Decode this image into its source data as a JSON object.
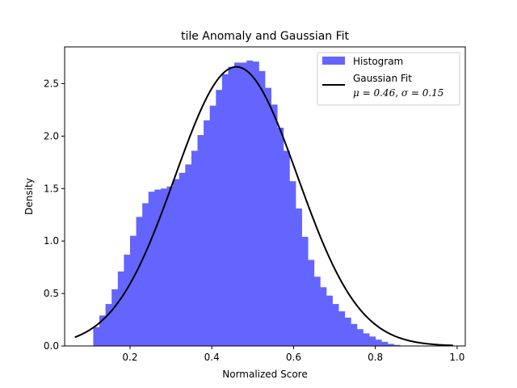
{
  "chart_data": {
    "type": "bar",
    "title": "tile Anomaly and Gaussian Fit",
    "xlabel": "Normalized Score",
    "ylabel": "Density",
    "xlim": [
      0.04,
      1.02
    ],
    "ylim": [
      0,
      2.85
    ],
    "xticks": [
      0.2,
      0.4,
      0.6,
      0.8,
      1.0
    ],
    "xtick_labels": [
      "0.2",
      "0.4",
      "0.6",
      "0.8",
      "1.0"
    ],
    "yticks": [
      0.0,
      0.5,
      1.0,
      1.5,
      2.0,
      2.5
    ],
    "ytick_labels": [
      "0.0",
      "0.5",
      "1.0",
      "1.5",
      "2.0",
      "2.5"
    ],
    "grid": false,
    "legend_position": "top-right",
    "colors": {
      "histogram": "#6464ff",
      "fit": "#000000"
    },
    "series": [
      {
        "name": "Histogram",
        "kind": "histogram",
        "bin_edges": [
          0.11,
          0.125,
          0.14,
          0.155,
          0.17,
          0.185,
          0.2,
          0.215,
          0.23,
          0.245,
          0.26,
          0.275,
          0.29,
          0.305,
          0.32,
          0.335,
          0.35,
          0.365,
          0.38,
          0.395,
          0.41,
          0.425,
          0.44,
          0.455,
          0.47,
          0.485,
          0.5,
          0.515,
          0.53,
          0.545,
          0.56,
          0.575,
          0.59,
          0.605,
          0.62,
          0.635,
          0.65,
          0.665,
          0.68,
          0.695,
          0.71,
          0.725,
          0.74,
          0.755,
          0.77,
          0.785,
          0.8,
          0.815,
          0.83,
          0.845,
          0.86
        ],
        "values": [
          0.18,
          0.29,
          0.4,
          0.54,
          0.71,
          0.87,
          1.05,
          1.23,
          1.36,
          1.47,
          1.49,
          1.5,
          1.52,
          1.59,
          1.65,
          1.73,
          1.86,
          2.01,
          2.15,
          2.29,
          2.44,
          2.59,
          2.66,
          2.7,
          2.7,
          2.72,
          2.71,
          2.62,
          2.46,
          2.3,
          2.08,
          1.86,
          1.57,
          1.31,
          1.04,
          0.82,
          0.66,
          0.56,
          0.48,
          0.4,
          0.33,
          0.27,
          0.21,
          0.16,
          0.12,
          0.09,
          0.06,
          0.04,
          0.02,
          0.01
        ]
      },
      {
        "name": "Gaussian Fit",
        "kind": "line",
        "mu": 0.46,
        "sigma": 0.15,
        "x_range": [
          0.065,
          0.99
        ]
      }
    ],
    "legend": {
      "histogram_label": "Histogram",
      "fit_label": "Gaussian Fit",
      "fit_params": "μ = 0.46,  σ = 0.15"
    }
  }
}
